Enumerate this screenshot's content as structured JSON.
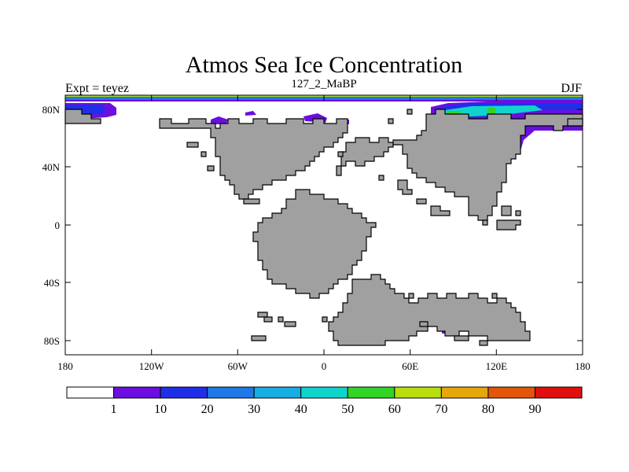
{
  "title": "Atmos Sea Ice Concentration",
  "left_label": "Expt = teyez",
  "center_label": "127_2_MaBP",
  "right_label": "DJF",
  "colors": {
    "land": "#a0a0a0",
    "land_edge": "#000000",
    "ocean": "#ffffff",
    "frame": "#000000"
  },
  "x_ticks": [
    "180",
    "120W",
    "60W",
    "0",
    "60E",
    "120E",
    "180"
  ],
  "y_ticks": [
    "80N",
    "40N",
    "0",
    "40S",
    "80S"
  ],
  "colorbar": {
    "labels": [
      "1",
      "10",
      "20",
      "30",
      "40",
      "50",
      "60",
      "70",
      "80",
      "90"
    ],
    "colors": [
      "#ffffff",
      "#6a0fe0",
      "#1f2fe8",
      "#1e78e6",
      "#17aee4",
      "#10d4cc",
      "#33d426",
      "#b8dd10",
      "#e4a80a",
      "#e2550a",
      "#e00f0f"
    ]
  }
}
